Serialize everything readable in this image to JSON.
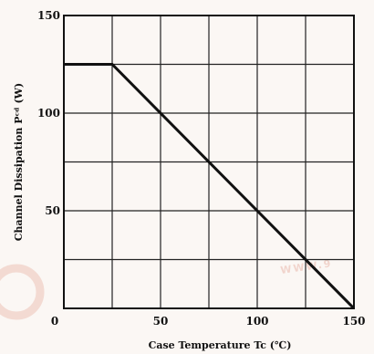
{
  "chart_data": {
    "type": "line",
    "title": "",
    "xlabel": "Case Temperature  Tc (℃)",
    "ylabel": "Channel Dissipation  Pᶜᵈ  (W)",
    "xlim": [
      0,
      150
    ],
    "ylim": [
      0,
      150
    ],
    "xticks": [
      0,
      50,
      100,
      150
    ],
    "yticks": [
      50,
      100,
      150
    ],
    "xgrid": [
      0,
      25,
      50,
      75,
      100,
      125,
      150
    ],
    "ygrid": [
      0,
      25,
      50,
      75,
      100,
      125,
      150
    ],
    "grid": true,
    "series": [
      {
        "x": [
          0,
          25,
          150
        ],
        "y": [
          125,
          125,
          0
        ]
      }
    ]
  },
  "watermark": {
    "color": "#e9b9ad",
    "text": "WWW.9"
  }
}
